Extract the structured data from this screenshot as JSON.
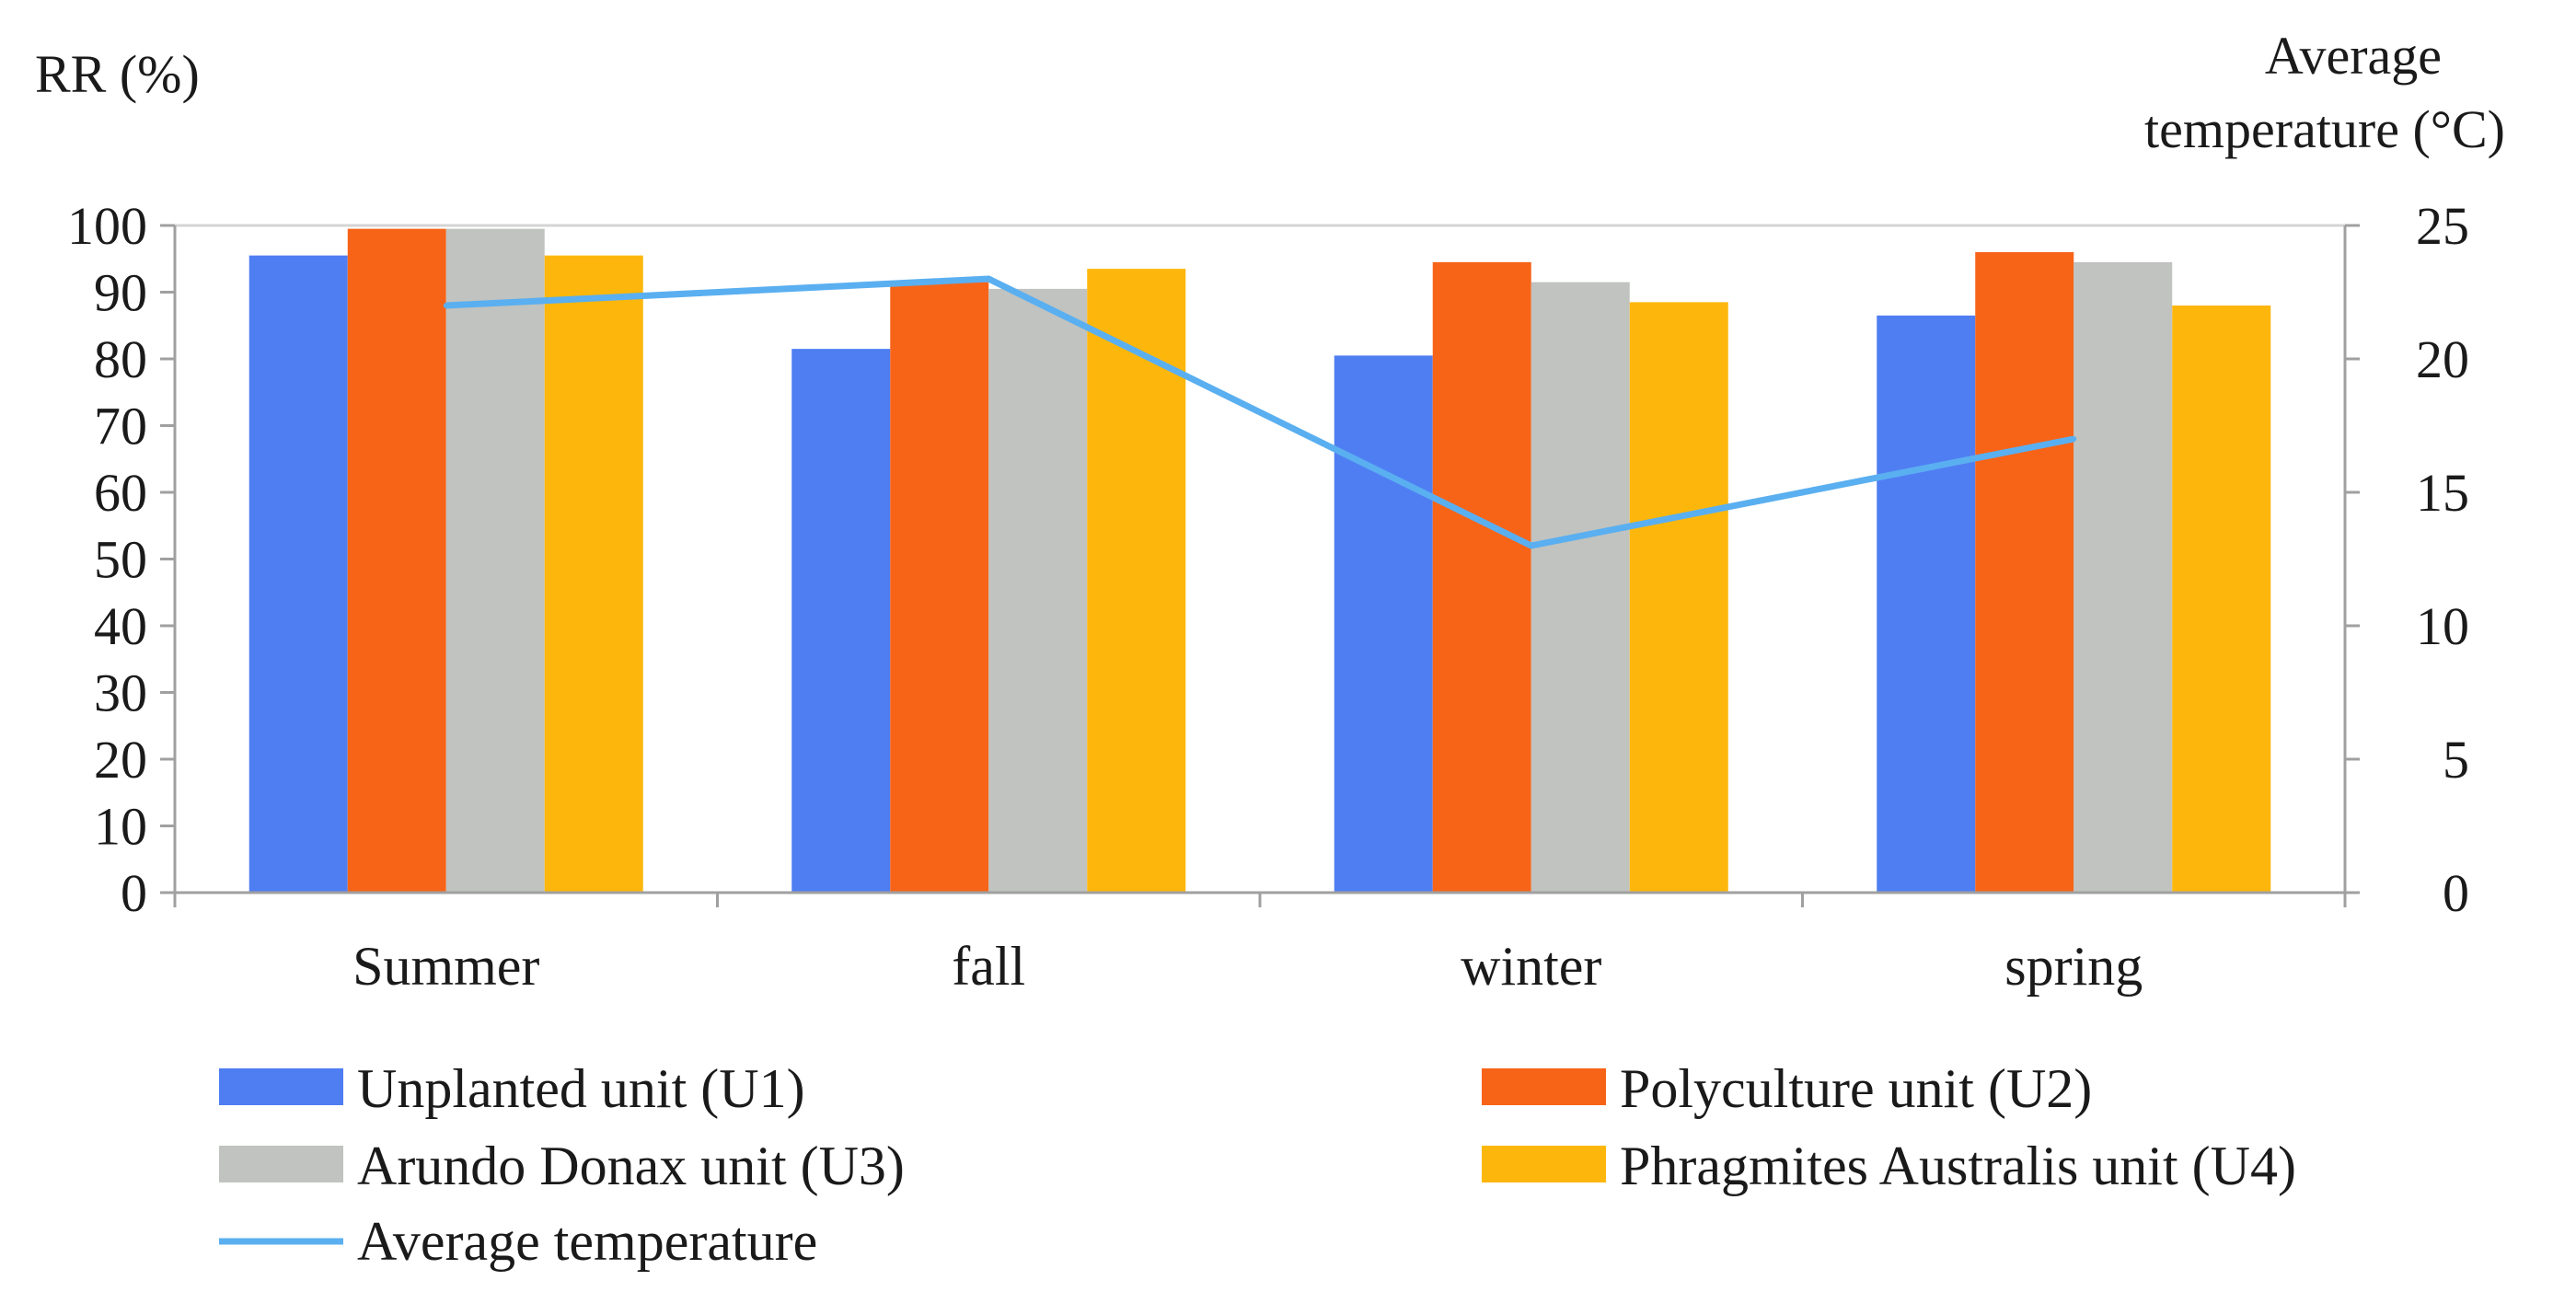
{
  "chart_data": {
    "type": "bar",
    "categories": [
      "Summer",
      "fall",
      "winter",
      "spring"
    ],
    "series": [
      {
        "name": "Unplanted unit (U1)",
        "values": [
          95.5,
          81.5,
          80.5,
          86.5
        ],
        "color": "#4f7ef2"
      },
      {
        "name": "Polyculture unit (U2)",
        "values": [
          99.5,
          91.5,
          94.5,
          96
        ],
        "color": "#f76418"
      },
      {
        "name": "Arundo Donax unit (U3)",
        "values": [
          99.5,
          90.5,
          91.5,
          94.5
        ],
        "color": "#c0c3c0"
      },
      {
        "name": "Phragmites Australis unit (U4)",
        "values": [
          95.5,
          93.5,
          88.5,
          88
        ],
        "color": "#fdb70c"
      }
    ],
    "line": {
      "name": "Average temperature",
      "values": [
        22,
        23,
        13,
        17
      ],
      "color": "#5aaff0",
      "axis": "right"
    },
    "ylabel": "RR (%)",
    "ylim": [
      0,
      100
    ],
    "yticks": [
      "100",
      "90",
      "80",
      "70",
      "60",
      "50",
      "40",
      "30",
      "20",
      "10",
      "0"
    ],
    "y2label_line1": "Average",
    "y2label_line2": "temperature (°C)",
    "y2lim": [
      0,
      25
    ],
    "y2ticks": [
      "25",
      "20",
      "15",
      "10",
      "5",
      "0"
    ],
    "legend_position": "bottom",
    "grid": false
  }
}
